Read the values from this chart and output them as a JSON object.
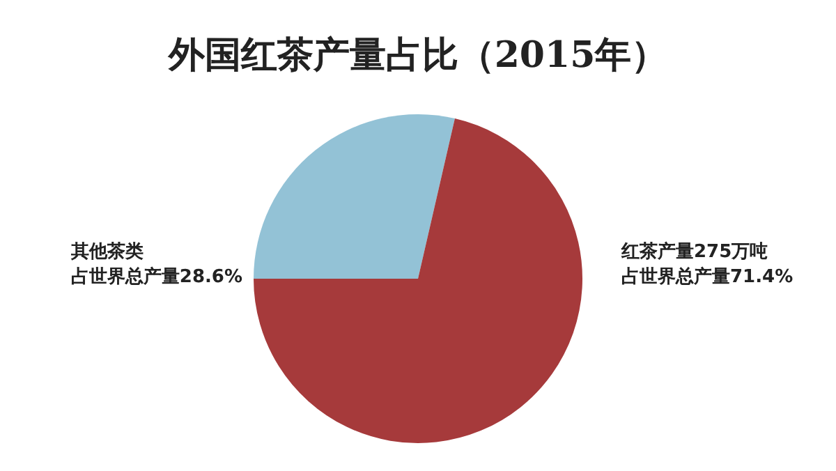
{
  "chart_data": {
    "type": "pie",
    "title": "外国红茶产量占比（2015年）",
    "categories": [
      "其他茶类",
      "红茶产量275万吨"
    ],
    "values": [
      28.6,
      71.4
    ],
    "value_labels": [
      "占世界总产量28.6%",
      "占世界总产量71.4%"
    ],
    "colors": [
      "#93c2d6",
      "#a63a3b"
    ]
  }
}
